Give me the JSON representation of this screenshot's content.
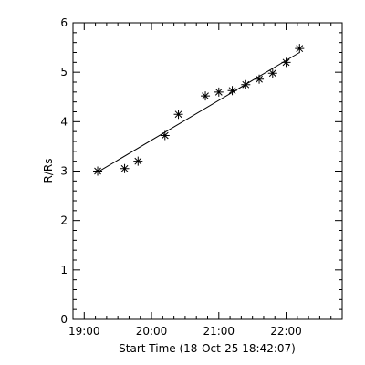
{
  "chart_data": {
    "type": "scatter",
    "title": "",
    "xlabel": "Start Time (18-Oct-25 18:42:07)",
    "ylabel": "R/Rs",
    "xlim": [
      "18:50",
      "22:50"
    ],
    "ylim": [
      0,
      6
    ],
    "x_ticks": [
      "19:00",
      "20:00",
      "21:00",
      "22:00"
    ],
    "y_ticks": [
      0,
      1,
      2,
      3,
      4,
      5,
      6
    ],
    "grid": false,
    "series": [
      {
        "marker": "asterisk",
        "x": [
          "19:12",
          "19:36",
          "19:48",
          "20:12",
          "20:24",
          "20:48",
          "21:00",
          "21:12",
          "21:24",
          "21:36",
          "21:48",
          "22:00",
          "22:12"
        ],
        "y": [
          3.0,
          3.05,
          3.2,
          3.72,
          4.15,
          4.52,
          4.6,
          4.63,
          4.75,
          4.86,
          4.98,
          5.2,
          5.48
        ]
      }
    ],
    "fit_line": {
      "x": [
        "19:12",
        "22:12"
      ],
      "y": [
        2.98,
        5.4
      ]
    }
  }
}
